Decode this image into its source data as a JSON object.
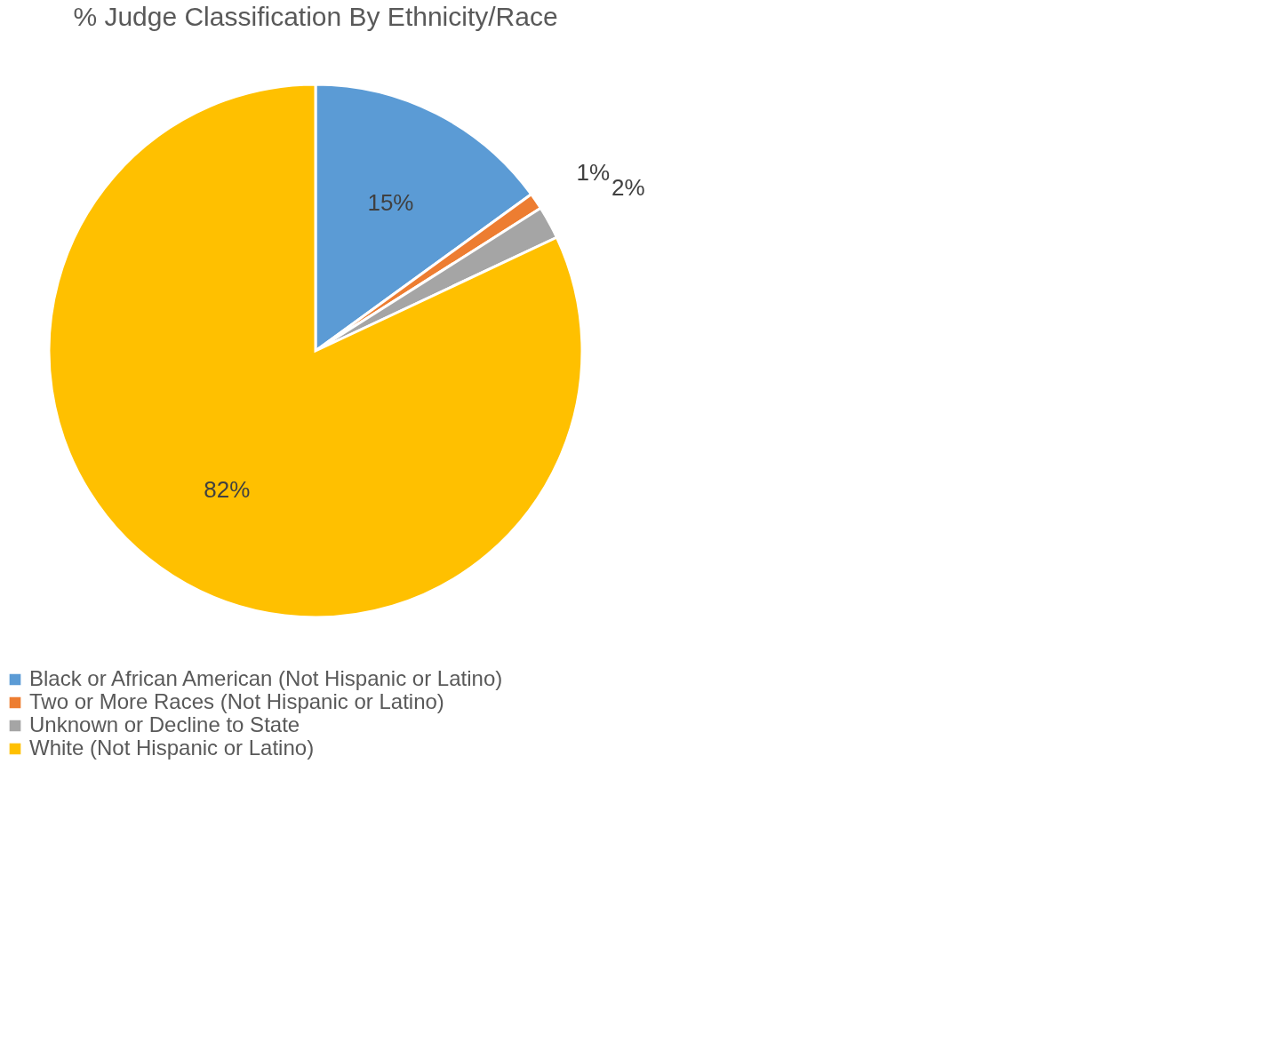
{
  "chart_data": {
    "type": "pie",
    "title": "% Judge Classification By Ethnicity/Race",
    "categories": [
      "Black or African American (Not Hispanic or Latino)",
      "Two or More Races (Not Hispanic or Latino)",
      "Unknown or Decline to State",
      "White (Not Hispanic or Latino)"
    ],
    "values": [
      15,
      1,
      2,
      82
    ],
    "colors": [
      "#5b9bd5",
      "#ed7d31",
      "#a5a5a5",
      "#ffc000"
    ],
    "value_labels": [
      "15%",
      "1%",
      "2%",
      "82%"
    ],
    "legend": "bottom"
  }
}
